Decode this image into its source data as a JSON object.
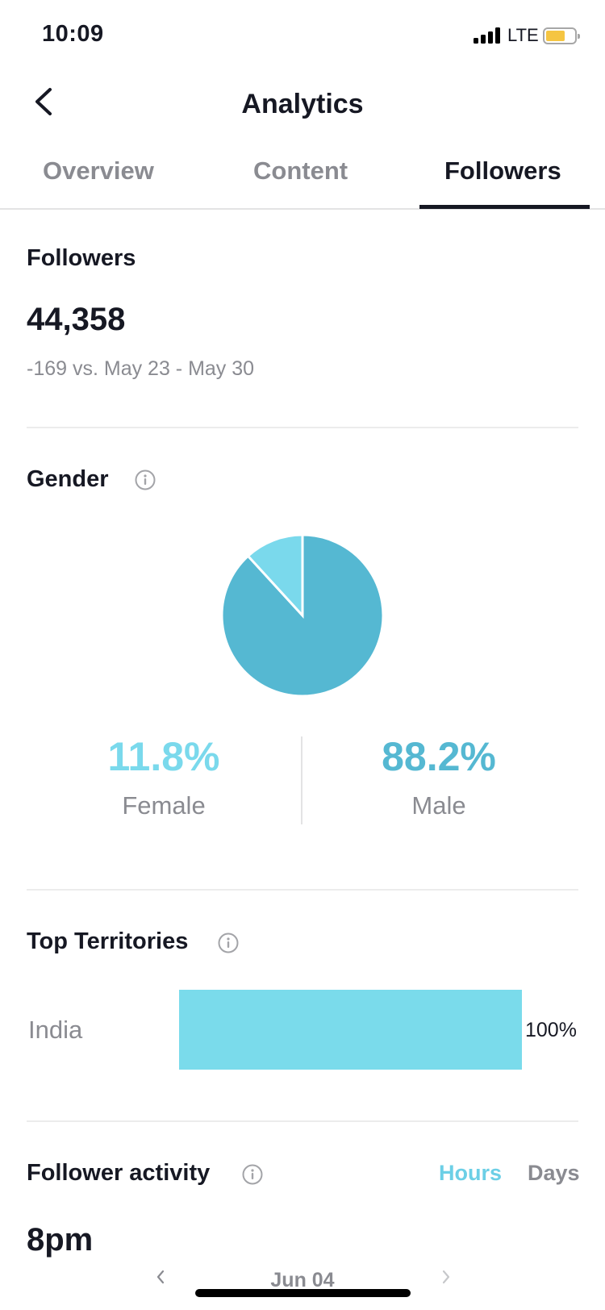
{
  "status_bar": {
    "time": "10:09",
    "network": "LTE",
    "battery_color": "#f5c542"
  },
  "header": {
    "title": "Analytics",
    "back_icon": "chevron-left-icon"
  },
  "tabs": [
    {
      "label": "Overview",
      "active": false
    },
    {
      "label": "Content",
      "active": false
    },
    {
      "label": "Followers",
      "active": true
    }
  ],
  "followers": {
    "title": "Followers",
    "count": "44,358",
    "comparison": "-169 vs. May 23 - May 30"
  },
  "gender": {
    "title": "Gender",
    "info_icon": "info-icon",
    "female": {
      "percent": "11.8%",
      "label": "Female",
      "value": 11.8,
      "color": "#7ad9ec"
    },
    "male": {
      "percent": "88.2%",
      "label": "Male",
      "value": 88.2,
      "color": "#55b8d2"
    }
  },
  "territories": {
    "title": "Top Territories",
    "info_icon": "info-icon",
    "items": [
      {
        "name": "India",
        "percent": "100%",
        "value": 100,
        "color": "#7adbeb"
      }
    ]
  },
  "follower_activity": {
    "title": "Follower activity",
    "info_icon": "info-icon",
    "toggle": {
      "hours": "Hours",
      "days": "Days",
      "selected": "Hours",
      "accent": "#6ccfe6"
    },
    "peak_time": "8pm",
    "date": "Jun 04",
    "prev_icon": "chevron-left-icon",
    "next_icon": "chevron-right-icon"
  }
}
